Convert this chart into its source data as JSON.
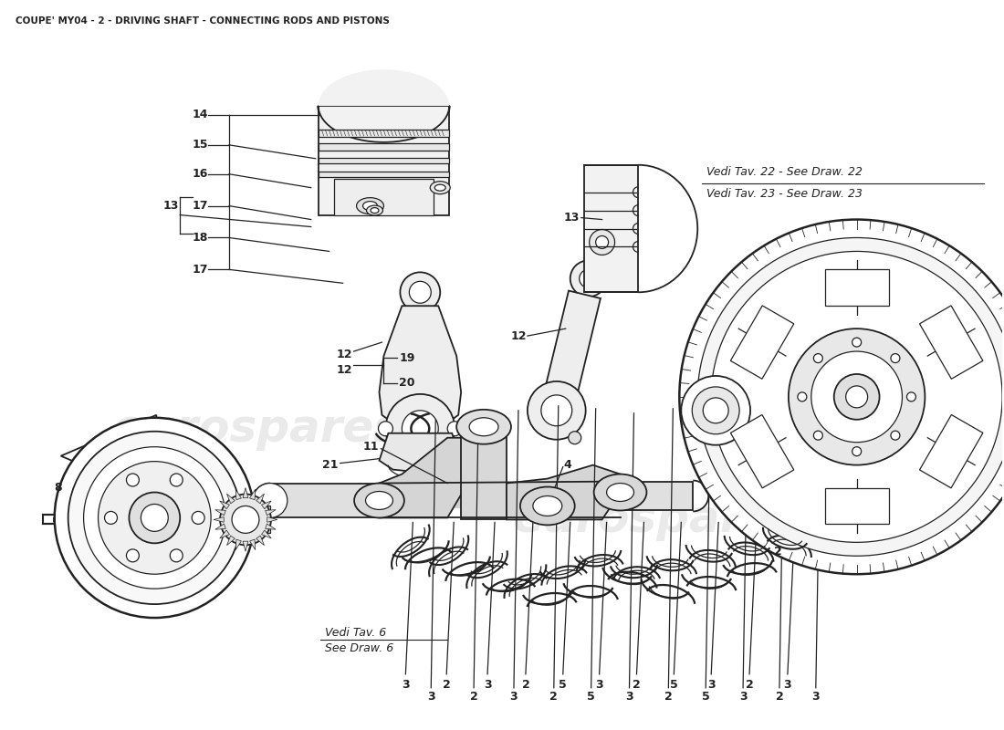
{
  "title": "COUPE' MY04 - 2 - DRIVING SHAFT - CONNECTING RODS AND PISTONS",
  "bg": "#ffffff",
  "lc": "#222222",
  "wm": "eurospares",
  "wm_color": "#cccccc",
  "vt22": "Vedi Tav. 22 - See Draw. 22",
  "vt23": "Vedi Tav. 23 - See Draw. 23",
  "vt6a": "Vedi Tav. 6",
  "vt6b": "See Draw. 6",
  "bottom_nums": [
    "3",
    "2",
    "3",
    "2",
    "5",
    "3",
    "2",
    "5",
    "3",
    "2",
    "3"
  ]
}
